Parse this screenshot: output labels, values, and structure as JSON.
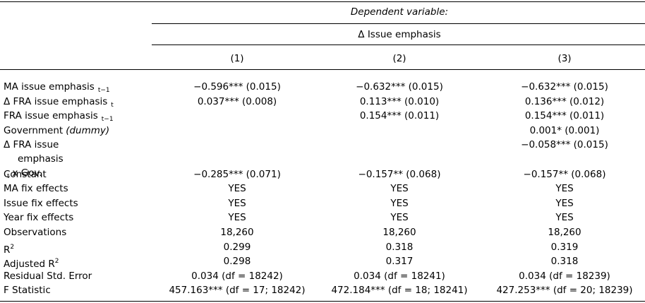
{
  "header": {
    "dependent_label": "Dependent variable:",
    "dependent_variable": "Δ Issue emphasis",
    "columns": [
      "(1)",
      "(2)",
      "(3)"
    ]
  },
  "rows": [
    {
      "label": [
        {
          "text": "MA issue emphasis"
        },
        {
          "text": "t−1",
          "style": "sub"
        }
      ],
      "cells": [
        "−0.596*** (0.015)",
        "−0.632*** (0.015)",
        "−0.632*** (0.015)"
      ]
    },
    {
      "label": [
        {
          "text": "Δ FRA issue emphasis"
        },
        {
          "text": "t",
          "style": "sub"
        }
      ],
      "cells": [
        "0.037*** (0.008)",
        "0.113*** (0.010)",
        "0.136*** (0.012)"
      ]
    },
    {
      "label": [
        {
          "text": "FRA issue emphasis"
        },
        {
          "text": "t−1",
          "style": "sub"
        }
      ],
      "cells": [
        null,
        "0.154*** (0.011)",
        "0.154*** (0.011)"
      ]
    },
    {
      "label": [
        {
          "text": "Government"
        },
        {
          "text": "(dummy)",
          "style": "italic"
        }
      ],
      "cells": [
        null,
        null,
        "0.001* (0.001)"
      ]
    },
    {
      "label": [
        {
          "text": "Δ FRA issue"
        },
        {
          "text": "emphasis",
          "style": "newline"
        },
        {
          "text": "t",
          "style": "sub"
        },
        {
          "text": "x Gov."
        }
      ],
      "cells": [
        null,
        null,
        "−0.058*** (0.015)"
      ]
    },
    {
      "label": [
        {
          "text": "Constant"
        }
      ],
      "cells": [
        "−0.285*** (0.071)",
        "−0.157** (0.068)",
        "−0.157** (0.068)"
      ]
    },
    {
      "label": [
        {
          "text": "MA fix effects"
        }
      ],
      "cells": [
        "YES",
        "YES",
        "YES"
      ]
    },
    {
      "label": [
        {
          "text": "Issue fix effects"
        }
      ],
      "cells": [
        "YES",
        "YES",
        "YES"
      ]
    },
    {
      "label": [
        {
          "text": "Year fix effects"
        }
      ],
      "cells": [
        "YES",
        "YES",
        "YES"
      ]
    },
    {
      "label": [
        {
          "text": "Observations"
        }
      ],
      "cells": [
        "18,260",
        "18,260",
        "18,260"
      ]
    },
    {
      "label": [
        {
          "text": "R"
        },
        {
          "text": "2",
          "style": "sup"
        }
      ],
      "cells": [
        "0.299",
        "0.318",
        "0.319"
      ]
    },
    {
      "label": [
        {
          "text": "Adjusted R"
        },
        {
          "text": "2",
          "style": "sup"
        }
      ],
      "cells": [
        "0.298",
        "0.317",
        "0.318"
      ]
    },
    {
      "label": [
        {
          "text": "Residual Std. Error"
        }
      ],
      "cells": [
        "0.034 (df = 18242)",
        "0.034 (df = 18241)",
        "0.034 (df = 18239)"
      ]
    },
    {
      "label": [
        {
          "text": "F Statistic"
        }
      ],
      "cells": [
        "457.163*** (df = 17; 18242)",
        "472.184*** (df = 18; 18241)",
        "427.253*** (df = 20; 18239)"
      ]
    }
  ]
}
